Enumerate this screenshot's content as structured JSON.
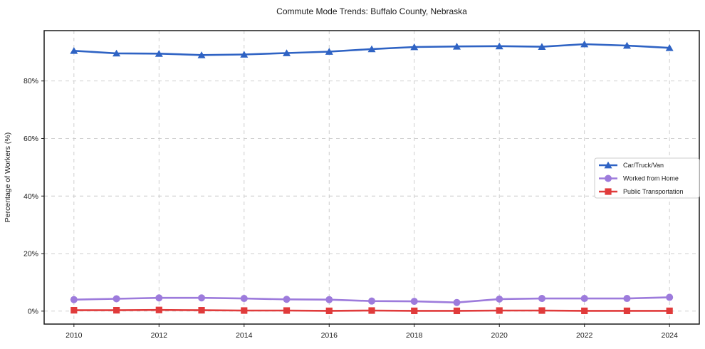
{
  "title": "Commute Mode Trends: Buffalo County, Nebraska",
  "chart_data": {
    "type": "line",
    "title": "Commute Mode Trends: Buffalo County, Nebraska",
    "xlabel": "",
    "ylabel": "Percentage of Workers (%)",
    "x": [
      2010,
      2011,
      2012,
      2013,
      2014,
      2015,
      2016,
      2017,
      2018,
      2019,
      2020,
      2021,
      2022,
      2023,
      2024
    ],
    "series": [
      {
        "name": "Car/Truck/Van",
        "marker": "triangle",
        "color": "#2f63c4",
        "values": [
          90.5,
          89.6,
          89.5,
          89.0,
          89.2,
          89.7,
          90.2,
          91.1,
          91.8,
          92.0,
          92.1,
          91.9,
          92.8,
          92.3,
          91.5
        ]
      },
      {
        "name": "Worked from Home",
        "marker": "circle",
        "color": "#9d7bdc",
        "values": [
          4.0,
          4.3,
          4.6,
          4.6,
          4.4,
          4.1,
          4.0,
          3.5,
          3.4,
          3.0,
          4.2,
          4.4,
          4.4,
          4.4,
          4.8
        ]
      },
      {
        "name": "Public Transportation",
        "marker": "square",
        "color": "#e03b3b",
        "values": [
          0.3,
          0.3,
          0.4,
          0.3,
          0.2,
          0.2,
          0.1,
          0.2,
          0.1,
          0.1,
          0.2,
          0.2,
          0.1,
          0.1,
          0.1
        ]
      }
    ],
    "x_ticks": [
      2010,
      2012,
      2014,
      2016,
      2018,
      2020,
      2022,
      2024
    ],
    "x_tick_labels": [
      "2010",
      "2012",
      "2014",
      "2016",
      "2018",
      "2020",
      "2022",
      "2024"
    ],
    "y_ticks": [
      0,
      20,
      40,
      60,
      80
    ],
    "y_tick_labels": [
      "0%",
      "20%",
      "40%",
      "60%",
      "80%"
    ],
    "xlim": [
      2009.3,
      2024.7
    ],
    "ylim": [
      -4.5,
      97.5
    ],
    "grid": true,
    "grid_style": "dashed",
    "grid_color": "#c9c9c9",
    "legend_position": "center right",
    "legend_border_color": "#cccccc",
    "spine_color": "#1a1a1a",
    "background_color": "#ffffff"
  }
}
